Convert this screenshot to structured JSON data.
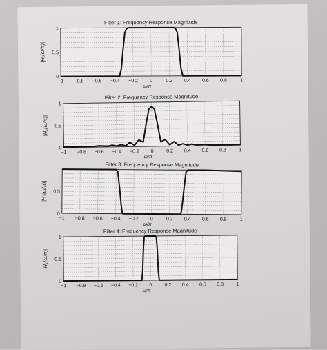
{
  "chart_data": [
    {
      "type": "line",
      "title": "Filter 1: Frequency Response Magnitude",
      "xlabel": "ω/π",
      "ylabel": "|H₁(ω/π)|",
      "xlim": [
        -1,
        1
      ],
      "ylim": [
        0,
        1
      ],
      "xticks": [
        "−1",
        "−0.8",
        "−0.6",
        "−0.4",
        "−0.2",
        "0",
        "0.2",
        "0.4",
        "0.6",
        "0.8",
        "1"
      ],
      "yticks": [
        "0",
        "0.5",
        "1"
      ],
      "grid": true,
      "x": [
        -1,
        -0.35,
        -0.33,
        -0.31,
        -0.29,
        -0.27,
        -0.25,
        -0.2,
        0,
        0.2,
        0.25,
        0.27,
        0.29,
        0.31,
        0.33,
        0.35,
        1
      ],
      "y": [
        0,
        0,
        0.15,
        0.55,
        0.9,
        0.98,
        1,
        1,
        1,
        1,
        1,
        0.98,
        0.9,
        0.55,
        0.15,
        0,
        0
      ]
    },
    {
      "type": "line",
      "title": "Filter 2: Frequency Response Magnitude",
      "xlabel": "ω/π",
      "ylabel": "|H₂(ω/π)|",
      "xlim": [
        -1,
        1
      ],
      "ylim": [
        0,
        1
      ],
      "xticks": [
        "−1",
        "−0.8",
        "−0.6",
        "−0.4",
        "−0.2",
        "0",
        "0.2",
        "0.4",
        "0.6",
        "0.8",
        "1"
      ],
      "yticks": [
        "0",
        "0.5",
        "1"
      ],
      "grid": true,
      "x": [
        -1,
        -0.9,
        -0.8,
        -0.7,
        -0.6,
        -0.5,
        -0.45,
        -0.4,
        -0.35,
        -0.3,
        -0.25,
        -0.2,
        -0.15,
        -0.1,
        -0.06,
        -0.03,
        0,
        0.03,
        0.06,
        0.1,
        0.15,
        0.2,
        0.25,
        0.3,
        0.35,
        0.4,
        0.45,
        0.5,
        0.6,
        0.7,
        0.8,
        0.9,
        1
      ],
      "y": [
        0.02,
        0.01,
        0.02,
        0.01,
        0.03,
        0.02,
        0.04,
        0.02,
        0.05,
        0.02,
        0.1,
        0.03,
        0.15,
        0.1,
        0.55,
        0.85,
        0.9,
        0.85,
        0.55,
        0.1,
        0.15,
        0.03,
        0.1,
        0.02,
        0.05,
        0.02,
        0.04,
        0.02,
        0.03,
        0.01,
        0.02,
        0.01,
        0.02
      ]
    },
    {
      "type": "line",
      "title": "Filter 3: Frequency Response Magnitude",
      "xlabel": "ω/π",
      "ylabel": "|H₃(ω/π)|",
      "xlim": [
        -1,
        1
      ],
      "ylim": [
        0,
        1
      ],
      "xticks": [
        "−1",
        "−0.8",
        "−0.6",
        "−0.4",
        "−0.2",
        "0",
        "0.2",
        "0.4",
        "0.6",
        "0.8",
        "1"
      ],
      "yticks": [
        "0",
        "0.5",
        "1"
      ],
      "grid": true,
      "x": [
        -1,
        -0.6,
        -0.4,
        -0.38,
        -0.36,
        -0.34,
        -0.33,
        -0.32,
        -0.3,
        -0.2,
        0,
        0.2,
        0.3,
        0.32,
        0.33,
        0.34,
        0.36,
        0.38,
        0.4,
        0.6,
        1
      ],
      "y": [
        1,
        1,
        1,
        0.95,
        0.6,
        0.2,
        0.05,
        0,
        0,
        0,
        0,
        0,
        0,
        0,
        0.05,
        0.2,
        0.6,
        0.95,
        1,
        1,
        0.98
      ]
    },
    {
      "type": "line",
      "title": "Filter 4: Frequency Response Magnitude",
      "xlabel": "ω/π",
      "ylabel": "|H₄(ω/π)|",
      "xlim": [
        -1,
        1
      ],
      "ylim": [
        0,
        1
      ],
      "xticks": [
        "−1",
        "−0.8",
        "−0.6",
        "−0.4",
        "−0.2",
        "0",
        "0.2",
        "0.4",
        "0.6",
        "0.8",
        "1"
      ],
      "yticks": [
        "0",
        "0.5",
        "1"
      ],
      "grid": true,
      "x": [
        -1,
        -0.1,
        -0.09,
        -0.08,
        -0.07,
        -0.06,
        0,
        0.06,
        0.07,
        0.08,
        0.09,
        0.1,
        1
      ],
      "y": [
        0,
        0,
        0.2,
        0.7,
        0.97,
        1,
        1,
        1,
        0.97,
        0.7,
        0.2,
        0,
        0
      ]
    }
  ]
}
